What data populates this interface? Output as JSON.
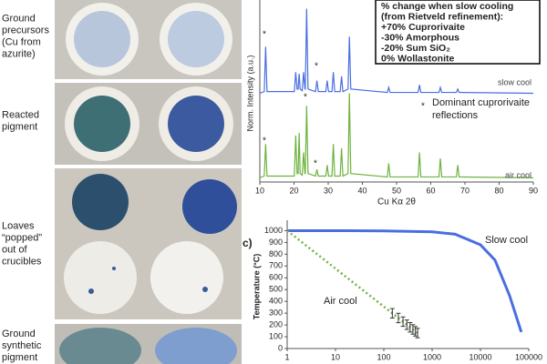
{
  "photo_labels": [
    [
      "Ground",
      "precursors",
      "(Cu from",
      "azurite)"
    ],
    [
      "Reacted",
      "pigment"
    ],
    [
      "Loaves",
      "“popped”",
      "out of",
      "crucibles"
    ],
    [
      "Ground",
      "synthetic",
      "pigment"
    ]
  ],
  "chart_data": [
    {
      "type": "line",
      "ylabel": "Norm. Intensity (a.u.)",
      "xlabel": "Cu Kα 2θ",
      "xlim": [
        10,
        90
      ],
      "xticks": [
        10,
        20,
        30,
        40,
        50,
        60,
        70,
        80,
        90
      ],
      "ylim": [
        0,
        2.1
      ],
      "x": [
        10,
        11.3,
        11.7,
        12.1,
        20.1,
        20.5,
        20.9,
        21.2,
        21.5,
        21.8,
        22.4,
        22.8,
        23.2,
        23.3,
        23.7,
        24.1,
        26.3,
        26.7,
        27.1,
        29.3,
        29.7,
        30.1,
        31.1,
        31.5,
        31.9,
        33.5,
        33.9,
        34.3,
        35.8,
        36.2,
        36.6,
        47.3,
        47.7,
        48.1,
        56.3,
        56.7,
        57.1,
        62.4,
        62.8,
        63.2,
        67.5,
        67.9,
        68.3,
        90
      ],
      "series": [
        {
          "name": "slow cool",
          "color": "#4a6ee0",
          "values": [
            1.05,
            1.07,
            1.6,
            1.07,
            1.07,
            1.3,
            1.1,
            1.1,
            1.28,
            1.1,
            1.08,
            1.3,
            1.1,
            1.1,
            2.05,
            1.1,
            1.07,
            1.2,
            1.07,
            1.07,
            1.2,
            1.07,
            1.07,
            1.3,
            1.07,
            1.07,
            1.25,
            1.07,
            1.1,
            1.72,
            1.1,
            1.06,
            1.12,
            1.06,
            1.06,
            1.15,
            1.06,
            1.06,
            1.12,
            1.06,
            1.06,
            1.1,
            1.06,
            1.05
          ]
        },
        {
          "name": "air cool",
          "color": "#6db33f",
          "values": [
            0.05,
            0.07,
            0.45,
            0.07,
            0.07,
            0.55,
            0.1,
            0.1,
            0.58,
            0.1,
            0.08,
            0.35,
            0.1,
            0.1,
            0.9,
            0.1,
            0.07,
            0.15,
            0.07,
            0.07,
            0.2,
            0.07,
            0.07,
            0.45,
            0.07,
            0.07,
            0.4,
            0.07,
            0.1,
            1.05,
            0.1,
            0.06,
            0.22,
            0.06,
            0.06,
            0.35,
            0.06,
            0.06,
            0.28,
            0.06,
            0.06,
            0.2,
            0.06,
            0.05
          ]
        }
      ],
      "annotations": [
        "*",
        "*",
        "*",
        "*",
        "*",
        "*"
      ],
      "note": [
        "Dominant cuprorivaite",
        "reflections"
      ],
      "info_box": [
        "% change when slow cooling",
        "(from Rietveld refinement):",
        "+70% Cuprorivaite",
        "-30% Amorphous",
        "-20% Sum SiO₂",
        "0% Wollastonite"
      ]
    },
    {
      "type": "line",
      "panel": "c)",
      "ylabel": "Temperature (°C)",
      "log_x": true,
      "xlim": [
        1,
        100000
      ],
      "xticks": [
        1,
        10,
        100,
        1000,
        10000,
        100000
      ],
      "ylim": [
        0,
        1050
      ],
      "yticks": [
        0,
        100,
        200,
        300,
        400,
        500,
        600,
        700,
        800,
        900,
        1000
      ],
      "series": [
        {
          "name": "Slow cool",
          "color": "#4a6ee0",
          "dashed": false,
          "x": [
            1,
            10,
            100,
            1000,
            3000,
            10000,
            20000,
            40000,
            70000
          ],
          "values": [
            1000,
            1000,
            998,
            990,
            970,
            880,
            750,
            450,
            140
          ]
        },
        {
          "name": "Air cool",
          "color": "#6db33f",
          "dashed": true,
          "x": [
            1,
            2,
            5,
            10,
            20,
            50,
            100,
            150,
            200,
            250,
            300,
            350,
            400,
            450,
            500
          ],
          "values": [
            1000,
            903,
            775,
            678,
            581,
            453,
            356,
            299,
            259,
            228,
            202,
            180,
            162,
            146,
            131
          ],
          "errors": [
            null,
            null,
            null,
            null,
            null,
            null,
            null,
            40,
            40,
            40,
            40,
            40,
            40,
            40,
            40
          ]
        }
      ]
    }
  ]
}
